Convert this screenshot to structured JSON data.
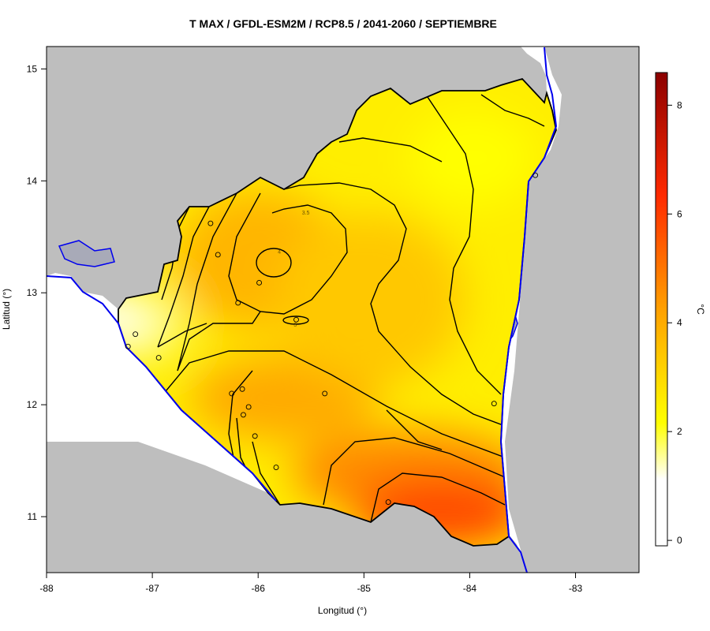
{
  "title": "T MAX / GFDL-ESM2M / RCP8.5 / 2041-2060 / SEPTIEMBRE",
  "axes": {
    "xlabel": "Longitud (°)",
    "ylabel": "Latitud (°)",
    "x_ticks": [
      "-88",
      "-87",
      "-86",
      "-85",
      "-84",
      "-83"
    ],
    "y_ticks": [
      "15",
      "14",
      "13",
      "12",
      "11"
    ],
    "xlim": [
      -88,
      -82.4
    ],
    "ylim": [
      10.5,
      15.2
    ]
  },
  "colorbar": {
    "unit_label": "°C",
    "ticks": [
      "0",
      "2",
      "4",
      "6",
      "8"
    ],
    "range": [
      -0.1,
      8.6
    ],
    "colors": [
      "#ffffff",
      "#ffff00",
      "#ff9900",
      "#ff2200",
      "#8b0000"
    ]
  },
  "contour_labels": [
    {
      "text": "3.5",
      "lon": -85.55,
      "lat": 13.7
    },
    {
      "text": "4",
      "lon": -85.8,
      "lat": 13.35
    },
    {
      "text": "3",
      "lon": -85.65,
      "lat": 12.7
    }
  ],
  "stations": [
    {
      "lon": -86.45,
      "lat": 13.62
    },
    {
      "lon": -86.38,
      "lat": 13.34
    },
    {
      "lon": -85.99,
      "lat": 13.09
    },
    {
      "lon": -86.19,
      "lat": 12.91
    },
    {
      "lon": -85.64,
      "lat": 12.76
    },
    {
      "lon": -87.16,
      "lat": 12.63
    },
    {
      "lon": -87.23,
      "lat": 12.52
    },
    {
      "lon": -86.94,
      "lat": 12.42
    },
    {
      "lon": -86.25,
      "lat": 12.1
    },
    {
      "lon": -86.15,
      "lat": 12.14
    },
    {
      "lon": -85.37,
      "lat": 12.1
    },
    {
      "lon": -86.09,
      "lat": 11.98
    },
    {
      "lon": -86.14,
      "lat": 11.91
    },
    {
      "lon": -86.03,
      "lat": 11.72
    },
    {
      "lon": -85.83,
      "lat": 11.44
    },
    {
      "lon": -84.77,
      "lat": 11.13
    },
    {
      "lon": -83.77,
      "lat": 12.01
    },
    {
      "lon": -83.38,
      "lat": 14.05
    }
  ]
}
